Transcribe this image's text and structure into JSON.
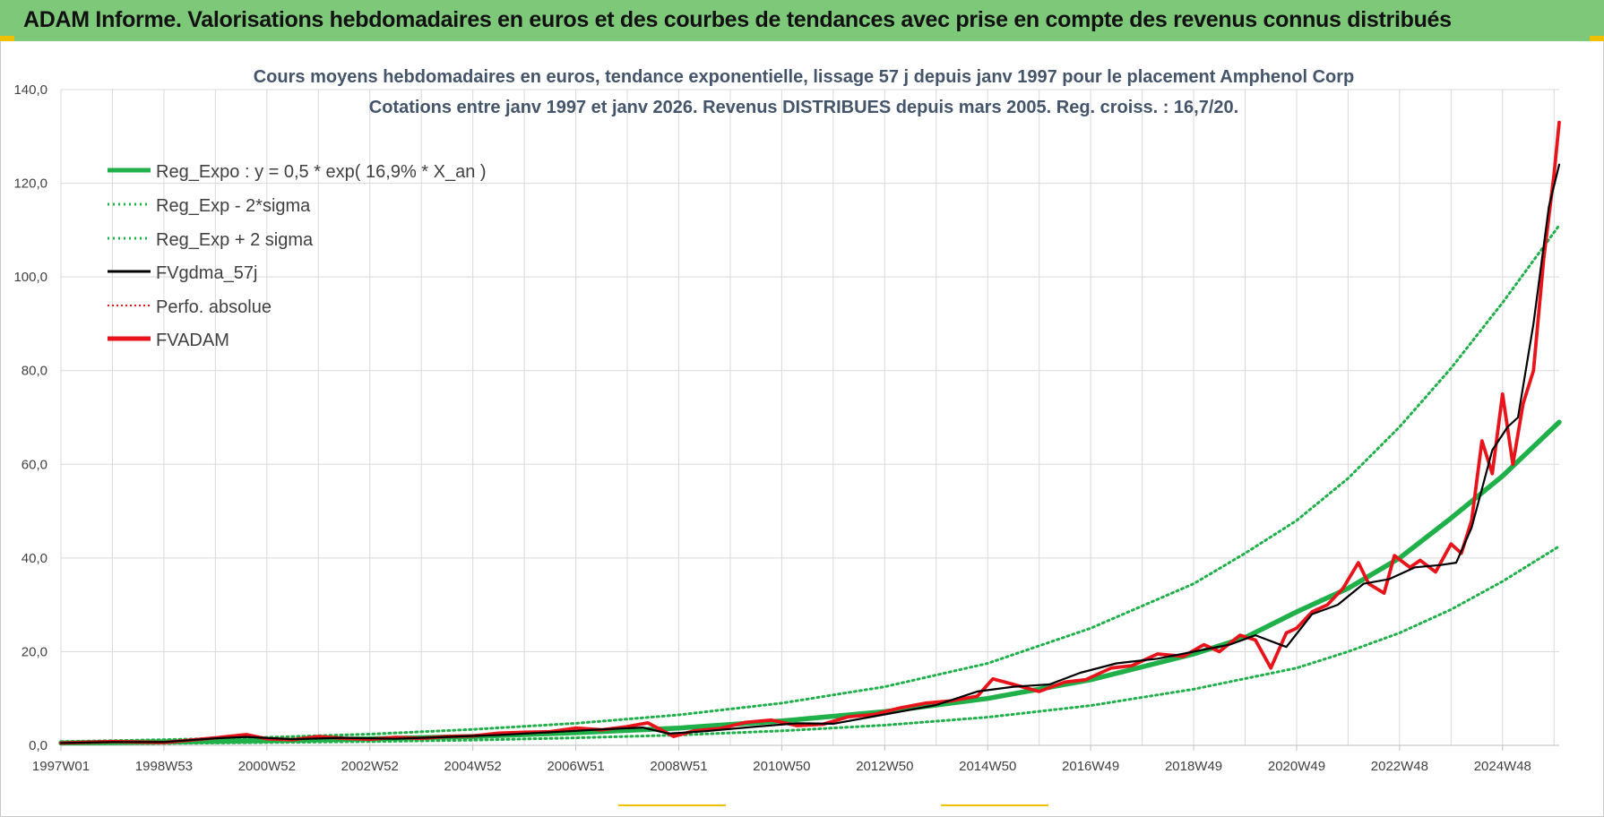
{
  "header": {
    "title": "ADAM Informe. Valorisations hebdomadaires en euros et des courbes de tendances avec prise en compte des revenus connus distribués"
  },
  "colors": {
    "header_bg": "#7ec87a",
    "green": "#1fb04a",
    "red": "#e8141b",
    "black": "#000000",
    "title": "#44546a",
    "grid": "#d9d9d9"
  },
  "chart_data": {
    "type": "line",
    "title": "Cours moyens hebdomadaires en euros, tendance exponentielle, lissage 57 j depuis janv 1997  pour le placement Amphenol Corp",
    "subtitle": "Cotations entre janv 1997 et janv 2026. Revenus DISTRIBUES depuis mars 2005.  Reg. croiss. : 16,7/20.",
    "xlabel": "",
    "ylabel": "",
    "ylim": [
      0,
      140
    ],
    "xlim": [
      1997.0,
      2026.1
    ],
    "y_ticks": [
      "0,0",
      "20,0",
      "40,0",
      "60,0",
      "80,0",
      "100,0",
      "120,0",
      "140,0"
    ],
    "y_tick_values": [
      0,
      20,
      40,
      60,
      80,
      100,
      120,
      140
    ],
    "x_ticks": [
      "1997W01",
      "1998W53",
      "2000W52",
      "2002W52",
      "2004W52",
      "2006W51",
      "2008W51",
      "2010W50",
      "2012W50",
      "2014W50",
      "2016W49",
      "2018W49",
      "2020W49",
      "2022W48",
      "2024W48"
    ],
    "x_tick_values": [
      1997.0,
      1999.0,
      2001.0,
      2003.0,
      2005.0,
      2007.0,
      2009.0,
      2011.0,
      2013.0,
      2015.0,
      2017.0,
      2019.0,
      2021.0,
      2023.0,
      2025.0
    ],
    "grid": true,
    "legend_position": "top-left",
    "legend": [
      {
        "label": "Reg_Expo : y = 0,5 * exp( 16,9% *  X_an )",
        "color": "#1fb04a",
        "style": "solid-thick"
      },
      {
        "label": "Reg_Exp - 2*sigma",
        "color": "#1fb04a",
        "style": "dotted"
      },
      {
        "label": "Reg_Exp + 2 sigma",
        "color": "#1fb04a",
        "style": "dotted"
      },
      {
        "label": "FVgdma_57j",
        "color": "#000000",
        "style": "solid"
      },
      {
        "label": "Perfo. absolue",
        "color": "#e8141b",
        "style": "dotted"
      },
      {
        "label": "FVADAM",
        "color": "#e8141b",
        "style": "solid-thick"
      }
    ],
    "series": [
      {
        "name": "Reg_Expo",
        "x": [
          1997.0,
          1999.0,
          2001.0,
          2003.0,
          2005.0,
          2007.0,
          2009.0,
          2011.0,
          2013.0,
          2015.0,
          2017.0,
          2019.0,
          2020.0,
          2021.0,
          2022.0,
          2023.0,
          2024.0,
          2025.0,
          2026.1
        ],
        "values": [
          0.5,
          0.7,
          1.0,
          1.4,
          1.9,
          2.7,
          3.7,
          5.2,
          7.2,
          10.0,
          14.0,
          19.5,
          23.0,
          28.5,
          33.5,
          40.0,
          48.5,
          57.5,
          69.0
        ]
      },
      {
        "name": "Reg_Exp - 2*sigma",
        "x": [
          1997.0,
          1999.0,
          2001.0,
          2003.0,
          2005.0,
          2007.0,
          2009.0,
          2011.0,
          2013.0,
          2015.0,
          2017.0,
          2019.0,
          2021.0,
          2022.0,
          2023.0,
          2024.0,
          2025.0,
          2026.1
        ],
        "values": [
          0.3,
          0.4,
          0.6,
          0.8,
          1.1,
          1.6,
          2.2,
          3.1,
          4.3,
          6.0,
          8.5,
          12.0,
          16.5,
          20.0,
          24.0,
          29.0,
          35.0,
          42.5
        ]
      },
      {
        "name": "Reg_Exp + 2 sigma",
        "x": [
          1997.0,
          1999.0,
          2001.0,
          2003.0,
          2005.0,
          2007.0,
          2009.0,
          2011.0,
          2013.0,
          2015.0,
          2017.0,
          2019.0,
          2020.0,
          2021.0,
          2022.0,
          2023.0,
          2024.0,
          2025.0,
          2026.1
        ],
        "values": [
          0.8,
          1.2,
          1.7,
          2.4,
          3.4,
          4.7,
          6.5,
          9.0,
          12.5,
          17.5,
          25.0,
          34.5,
          41.0,
          48.0,
          57.0,
          68.0,
          80.5,
          94.5,
          111.0
        ]
      },
      {
        "name": "FVgdma_57j",
        "x": [
          1997.0,
          1998.0,
          1999.0,
          2000.0,
          2000.6,
          2001.5,
          2002.5,
          2003.5,
          2004.5,
          2005.5,
          2006.5,
          2007.5,
          2008.3,
          2008.8,
          2009.5,
          2010.5,
          2011.3,
          2012.0,
          2013.0,
          2014.0,
          2014.8,
          2015.5,
          2016.2,
          2016.8,
          2017.5,
          2018.3,
          2019.0,
          2019.7,
          2020.2,
          2020.8,
          2021.3,
          2021.8,
          2022.3,
          2022.8,
          2023.3,
          2023.8,
          2024.1,
          2024.4,
          2024.8,
          2025.1,
          2025.3,
          2025.6,
          2025.9,
          2026.1
        ],
        "values": [
          0.5,
          0.7,
          0.7,
          1.5,
          1.8,
          1.3,
          1.6,
          1.4,
          1.8,
          2.2,
          2.8,
          3.4,
          3.8,
          2.5,
          3.0,
          4.0,
          4.7,
          4.6,
          6.6,
          8.6,
          11.5,
          12.5,
          13.0,
          15.5,
          17.5,
          18.5,
          20.0,
          21.5,
          23.5,
          21.0,
          28.0,
          30.0,
          34.5,
          35.5,
          38.0,
          38.5,
          39.0,
          46.5,
          63.0,
          68.0,
          70.0,
          90.0,
          115.0,
          124.0
        ]
      },
      {
        "name": "FVADAM",
        "x": [
          1997.0,
          1998.0,
          1999.0,
          2000.0,
          2000.6,
          2001.0,
          2001.5,
          2002.0,
          2002.5,
          2003.0,
          2003.5,
          2004.0,
          2004.5,
          2005.0,
          2005.5,
          2006.0,
          2006.5,
          2007.0,
          2007.5,
          2008.0,
          2008.4,
          2008.9,
          2009.3,
          2009.8,
          2010.3,
          2010.8,
          2011.3,
          2011.8,
          2012.3,
          2012.8,
          2013.3,
          2013.8,
          2014.3,
          2014.8,
          2015.1,
          2015.5,
          2016.0,
          2016.5,
          2016.9,
          2017.4,
          2017.8,
          2018.3,
          2018.8,
          2019.2,
          2019.5,
          2019.9,
          2020.2,
          2020.5,
          2020.8,
          2021.0,
          2021.3,
          2021.6,
          2021.9,
          2022.2,
          2022.4,
          2022.7,
          2022.9,
          2023.2,
          2023.4,
          2023.7,
          2024.0,
          2024.2,
          2024.4,
          2024.6,
          2024.8,
          2025.0,
          2025.2,
          2025.4,
          2025.6,
          2025.8,
          2026.0,
          2026.1
        ],
        "values": [
          0.5,
          0.8,
          0.6,
          1.6,
          2.3,
          1.4,
          1.2,
          1.9,
          1.5,
          1.3,
          1.7,
          1.5,
          1.9,
          2.0,
          2.6,
          2.8,
          2.9,
          3.7,
          3.3,
          4.0,
          4.8,
          1.9,
          3.1,
          3.6,
          4.9,
          5.4,
          4.2,
          4.5,
          6.1,
          6.6,
          8.0,
          9.0,
          9.5,
          10.5,
          14.2,
          13.0,
          11.5,
          13.5,
          14.0,
          16.5,
          17.0,
          19.5,
          19.0,
          21.5,
          20.0,
          23.5,
          22.5,
          16.5,
          24.0,
          25.0,
          28.5,
          30.0,
          33.5,
          39.0,
          34.5,
          32.5,
          40.5,
          38.0,
          39.5,
          37.0,
          43.0,
          41.0,
          48.0,
          65.0,
          58.0,
          75.0,
          60.0,
          73.0,
          80.0,
          104.0,
          122.0,
          133.0
        ]
      }
    ]
  }
}
